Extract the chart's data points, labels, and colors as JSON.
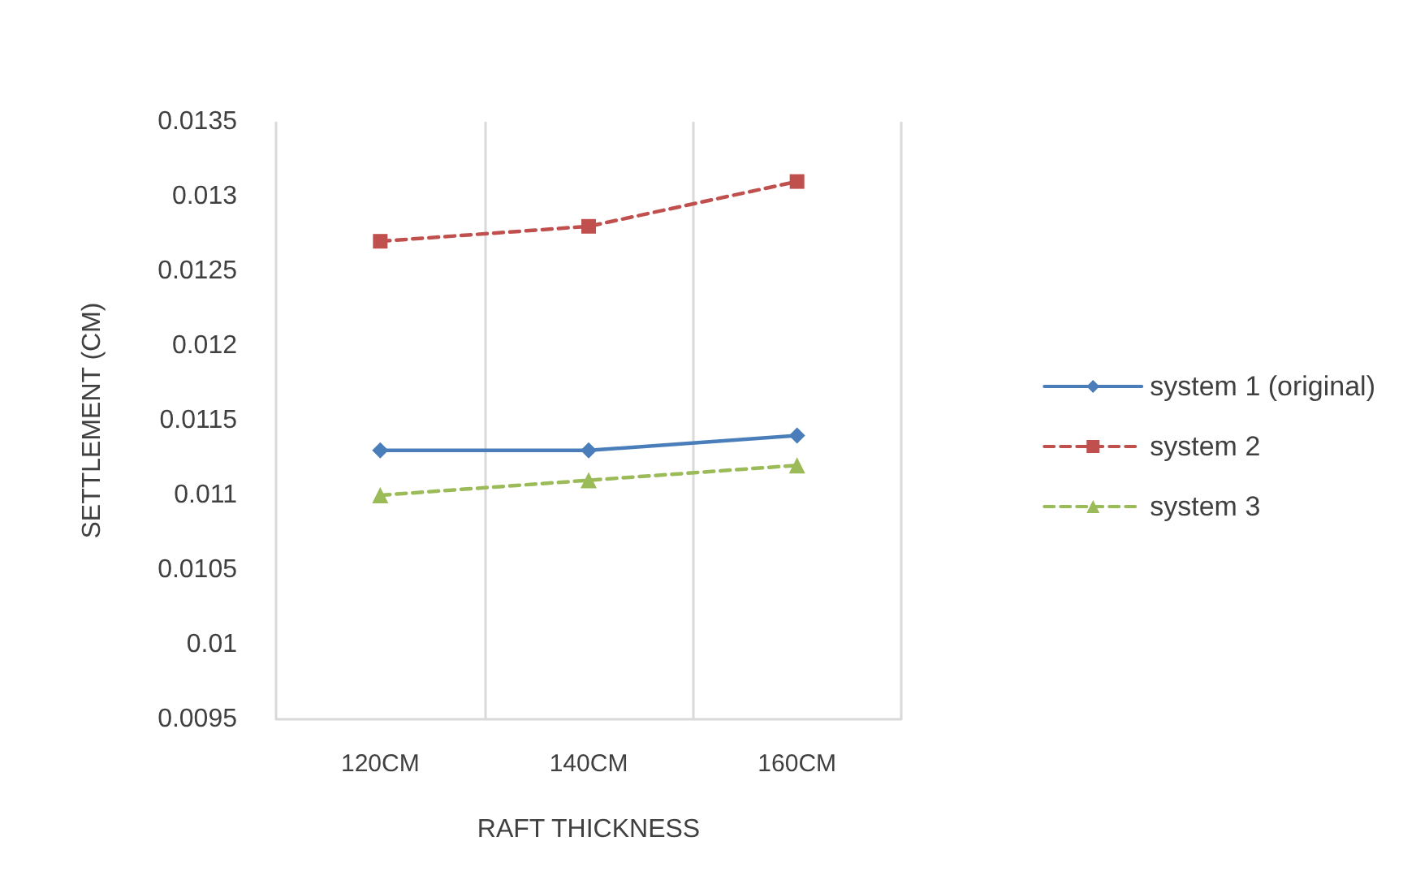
{
  "chart_data": {
    "type": "line",
    "xlabel": "RAFT THICKNESS",
    "ylabel": "SETTLEMENT (CM)",
    "categories": [
      "120CM",
      "140CM",
      "160CM"
    ],
    "series": [
      {
        "name": "system 1 (original)",
        "color": "#4a7ebb",
        "values": [
          0.0113,
          0.0113,
          0.0114
        ],
        "marker": "diamond",
        "line_style": "solid"
      },
      {
        "name": "system 2",
        "color": "#c0504d",
        "values": [
          0.0127,
          0.0128,
          0.0131
        ],
        "marker": "square",
        "line_style": "dashed"
      },
      {
        "name": "system 3",
        "color": "#9bbb59",
        "values": [
          0.011,
          0.0111,
          0.0112
        ],
        "marker": "triangle",
        "line_style": "dashed"
      }
    ],
    "ylim": [
      0.0095,
      0.0135
    ],
    "yticks": [
      0.0095,
      0.01,
      0.0105,
      0.011,
      0.0115,
      0.012,
      0.0125,
      0.013,
      0.0135
    ],
    "grid": "x",
    "legend": "right"
  }
}
